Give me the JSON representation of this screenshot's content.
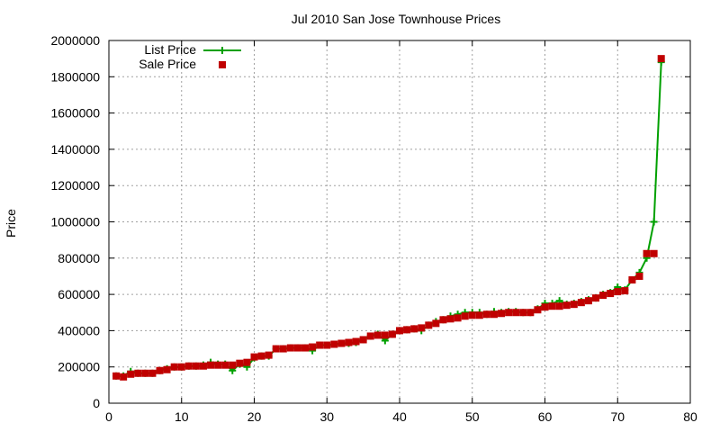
{
  "chart_data": {
    "type": "line",
    "title": "Jul 2010 San Jose Townhouse Prices",
    "xlabel": "",
    "ylabel": "Price",
    "xlim": [
      0,
      80
    ],
    "ylim": [
      0,
      2000000
    ],
    "x_ticks": [
      0,
      10,
      20,
      30,
      40,
      50,
      60,
      70,
      80
    ],
    "y_ticks": [
      0,
      200000,
      400000,
      600000,
      800000,
      1000000,
      1200000,
      1400000,
      1600000,
      1800000,
      2000000
    ],
    "grid": true,
    "legend_position": "top-left",
    "x": [
      1,
      2,
      3,
      4,
      5,
      6,
      7,
      8,
      9,
      10,
      11,
      12,
      13,
      14,
      15,
      16,
      17,
      18,
      19,
      20,
      21,
      22,
      23,
      24,
      25,
      26,
      27,
      28,
      29,
      30,
      31,
      32,
      33,
      34,
      35,
      36,
      37,
      38,
      39,
      40,
      41,
      42,
      43,
      44,
      45,
      46,
      47,
      48,
      49,
      50,
      51,
      52,
      53,
      54,
      55,
      56,
      57,
      58,
      59,
      60,
      61,
      62,
      63,
      64,
      65,
      66,
      67,
      68,
      69,
      70,
      71,
      72,
      73,
      74,
      75,
      76
    ],
    "series": [
      {
        "name": "List Price",
        "color": "#00a000",
        "marker": "plus",
        "line": true,
        "values": [
          150000,
          150000,
          175000,
          165000,
          165000,
          165000,
          180000,
          190000,
          200000,
          200000,
          205000,
          205000,
          210000,
          225000,
          215000,
          215000,
          180000,
          215000,
          200000,
          250000,
          260000,
          260000,
          300000,
          300000,
          305000,
          305000,
          305000,
          290000,
          320000,
          320000,
          325000,
          330000,
          330000,
          335000,
          350000,
          370000,
          380000,
          345000,
          380000,
          400000,
          405000,
          410000,
          400000,
          430000,
          450000,
          460000,
          480000,
          490000,
          500000,
          500000,
          500000,
          490000,
          505000,
          500000,
          505000,
          505000,
          500000,
          500000,
          520000,
          550000,
          550000,
          565000,
          545000,
          550000,
          560000,
          570000,
          580000,
          600000,
          610000,
          640000,
          625000,
          680000,
          720000,
          800000,
          1000000,
          1880000
        ]
      },
      {
        "name": "Sale Price",
        "color": "#c00000",
        "marker": "square",
        "line": false,
        "values": [
          150000,
          145000,
          160000,
          165000,
          165000,
          165000,
          180000,
          185000,
          200000,
          200000,
          205000,
          205000,
          205000,
          210000,
          210000,
          210000,
          210000,
          220000,
          225000,
          255000,
          260000,
          265000,
          300000,
          300000,
          305000,
          305000,
          305000,
          310000,
          320000,
          320000,
          325000,
          330000,
          335000,
          340000,
          350000,
          370000,
          375000,
          375000,
          380000,
          400000,
          405000,
          410000,
          415000,
          430000,
          440000,
          460000,
          465000,
          470000,
          480000,
          485000,
          485000,
          490000,
          490000,
          495000,
          500000,
          500000,
          500000,
          500000,
          515000,
          530000,
          535000,
          535000,
          540000,
          545000,
          555000,
          565000,
          580000,
          595000,
          605000,
          615000,
          620000,
          680000,
          700000,
          825000,
          825000,
          1900000
        ]
      }
    ]
  }
}
